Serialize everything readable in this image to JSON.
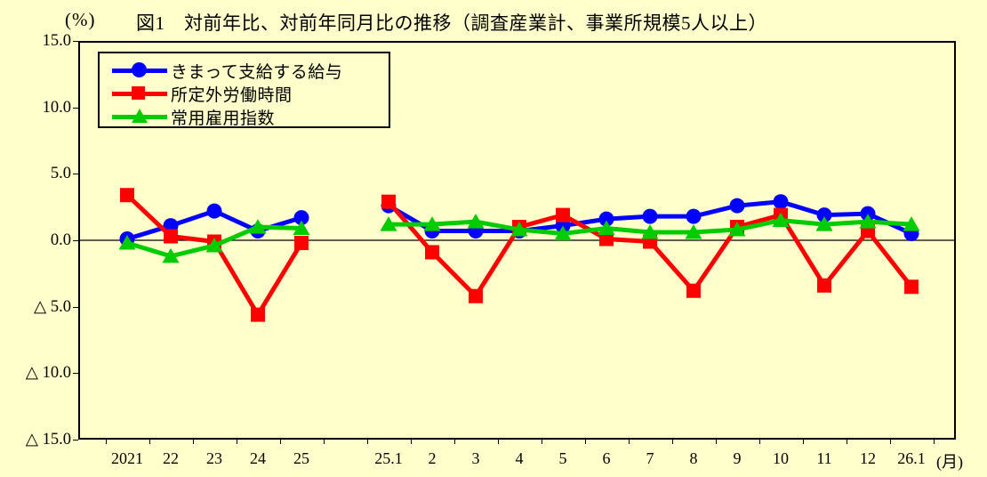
{
  "title": {
    "unit": "(%)",
    "text": "図1　対前年比、対前年同月比の推移（調査産業計、事業所規模5人以上）"
  },
  "colors": {
    "background": "#ffffcc",
    "axis": "#000000",
    "series_blue": "#0000ff",
    "series_red": "#ff0000",
    "series_green": "#00cc00"
  },
  "chart_data": {
    "type": "line",
    "title": "図1　対前年比、対前年同月比の推移（調査産業計、事業所規模5人以上）",
    "ylabel": "(%)",
    "ylim": [
      -15,
      15
    ],
    "ytick_values": [
      15,
      10,
      5,
      0,
      -5,
      -10,
      -15
    ],
    "ytick_labels": [
      "15.0",
      "10.0",
      "5.0",
      "0.0",
      "△ 5.0",
      "△ 10.0",
      "△ 15.0"
    ],
    "grid": "off",
    "legend_position": "top-left",
    "x_groups": [
      {
        "name": "annual",
        "categories": [
          "2021",
          "22",
          "23",
          "24",
          "25"
        ]
      },
      {
        "name": "monthly",
        "categories": [
          "25.1",
          "2",
          "3",
          "4",
          "5",
          "6",
          "7",
          "8",
          "9",
          "10",
          "11",
          "12",
          "26.1"
        ]
      }
    ],
    "x_suffix": "(月)",
    "series": [
      {
        "name": "きまって支給する給与",
        "color": "#0000ff",
        "marker": "circle",
        "annual": [
          0.1,
          1.1,
          2.2,
          0.7,
          1.7
        ],
        "monthly": [
          2.6,
          0.7,
          0.7,
          0.7,
          1.1,
          1.6,
          1.8,
          1.8,
          2.6,
          2.9,
          1.9,
          2.0,
          0.5
        ]
      },
      {
        "name": "所定外労働時間",
        "color": "#ff0000",
        "marker": "square",
        "annual": [
          3.4,
          0.3,
          -0.1,
          -5.6,
          -0.2
        ],
        "monthly": [
          2.9,
          -0.9,
          -4.2,
          1.0,
          1.9,
          0.1,
          -0.1,
          -3.8,
          1.0,
          1.9,
          -3.4,
          0.7,
          -3.5
        ]
      },
      {
        "name": "常用雇用指数",
        "color": "#00cc00",
        "marker": "triangle",
        "annual": [
          -0.2,
          -1.2,
          -0.4,
          1.0,
          0.9
        ],
        "monthly": [
          1.2,
          1.2,
          1.4,
          0.8,
          0.5,
          0.9,
          0.6,
          0.6,
          0.8,
          1.5,
          1.2,
          1.4,
          1.2
        ]
      }
    ]
  }
}
